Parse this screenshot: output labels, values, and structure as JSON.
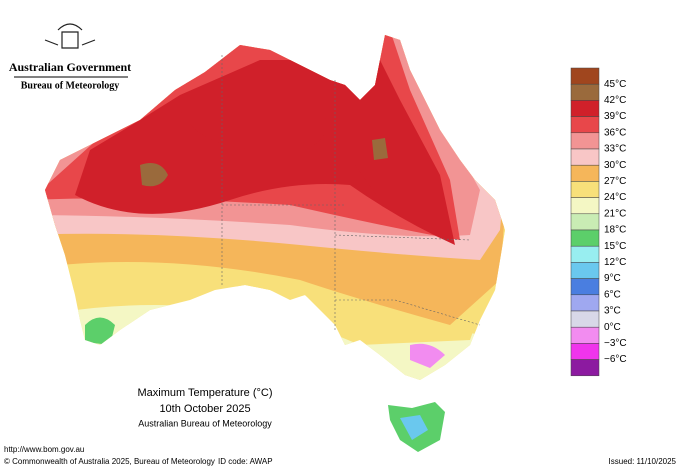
{
  "header": {
    "government": "Australian Government",
    "bureau": "Bureau of Meteorology"
  },
  "map": {
    "title": "Maximum Temperature (°C)",
    "date": "10th October 2025",
    "source": "Australian Bureau of Meteorology"
  },
  "legend": {
    "items": [
      {
        "label": "45°C",
        "color": "#a0461e"
      },
      {
        "label": "42°C",
        "color": "#9a6a3c"
      },
      {
        "label": "39°C",
        "color": "#d0202a"
      },
      {
        "label": "36°C",
        "color": "#e8474a"
      },
      {
        "label": "33°C",
        "color": "#f29494"
      },
      {
        "label": "30°C",
        "color": "#f8c6c6"
      },
      {
        "label": "27°C",
        "color": "#f5b65a"
      },
      {
        "label": "24°C",
        "color": "#f8e07a"
      },
      {
        "label": "21°C",
        "color": "#f4f7c4"
      },
      {
        "label": "18°C",
        "color": "#c9ecb4"
      },
      {
        "label": "15°C",
        "color": "#5ccf6a"
      },
      {
        "label": "12°C",
        "color": "#98eef0"
      },
      {
        "label": "9°C",
        "color": "#6ac8ee"
      },
      {
        "label": "6°C",
        "color": "#4a7ee0"
      },
      {
        "label": "3°C",
        "color": "#9fa8f0"
      },
      {
        "label": "0°C",
        "color": "#d8d8e8"
      },
      {
        "label": "−3°C",
        "color": "#f28cf0"
      },
      {
        "label": "−6°C",
        "color": "#f034ec"
      },
      {
        "label": "",
        "color": "#8c1aa0"
      }
    ]
  },
  "footer": {
    "url": "http://www.bom.gov.au",
    "copyright": "© Commonwealth of Australia 2025, Bureau of Meteorology",
    "id": "ID code: AWAP",
    "issued": "Issued: 11/10/2025"
  }
}
